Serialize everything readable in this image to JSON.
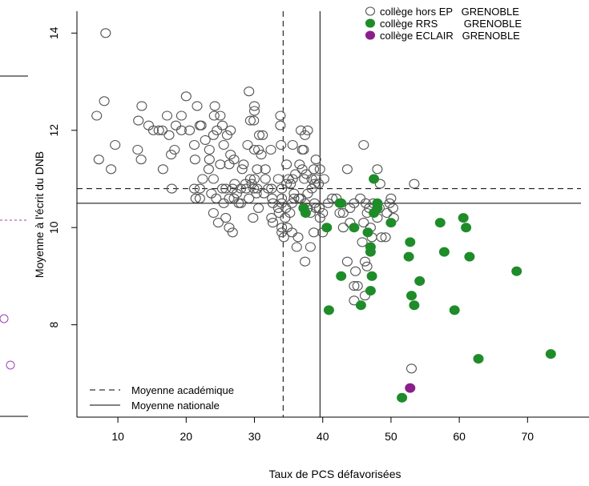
{
  "chart_data": {
    "type": "scatter",
    "xlabel": "Taux de PCS défavorisées",
    "ylabel": "Moyenne à l'écrit du DNB",
    "xlim": [
      4,
      79
    ],
    "ylim": [
      6.1,
      14.45
    ],
    "xticks": [
      "10",
      "20",
      "30",
      "40",
      "50",
      "60",
      "70"
    ],
    "yticks": [
      "8",
      "10",
      "12",
      "14"
    ],
    "grid": false,
    "legend_position": "top-right",
    "series": [
      {
        "name": "collège hors EP   GRENOBLE",
        "marker": "open-circle",
        "color": "#555555",
        "points": [
          [
            8.2,
            14.0
          ],
          [
            8.0,
            12.6
          ],
          [
            6.9,
            12.3
          ],
          [
            9.6,
            11.7
          ],
          [
            7.2,
            11.4
          ],
          [
            9.0,
            11.2
          ],
          [
            12.9,
            11.6
          ],
          [
            13.4,
            11.4
          ],
          [
            13.5,
            12.5
          ],
          [
            13.0,
            12.2
          ],
          [
            14.5,
            12.1
          ],
          [
            15.2,
            12.0
          ],
          [
            16.0,
            12.0
          ],
          [
            16.5,
            12.0
          ],
          [
            17.2,
            12.3
          ],
          [
            17.5,
            11.9
          ],
          [
            16.6,
            11.2
          ],
          [
            17.8,
            11.5
          ],
          [
            17.9,
            10.8
          ],
          [
            18.5,
            12.1
          ],
          [
            18.3,
            11.6
          ],
          [
            19.3,
            12.0
          ],
          [
            19.3,
            12.3
          ],
          [
            20.0,
            12.7
          ],
          [
            20.5,
            12.0
          ],
          [
            21.2,
            11.7
          ],
          [
            21.3,
            11.4
          ],
          [
            22.0,
            12.1
          ],
          [
            22.2,
            12.1
          ],
          [
            21.6,
            12.5
          ],
          [
            22.8,
            11.8
          ],
          [
            23.4,
            11.6
          ],
          [
            23.4,
            11.4
          ],
          [
            24.2,
            12.5
          ],
          [
            24.1,
            12.3
          ],
          [
            24.0,
            11.9
          ],
          [
            24.5,
            12.0
          ],
          [
            25.0,
            12.3
          ],
          [
            25.3,
            12.1
          ],
          [
            25.5,
            11.7
          ],
          [
            26.0,
            11.9
          ],
          [
            26.5,
            12.0
          ],
          [
            26.3,
            11.3
          ],
          [
            26.5,
            11.5
          ],
          [
            27.0,
            11.4
          ],
          [
            25.0,
            11.3
          ],
          [
            24.0,
            11.0
          ],
          [
            23.3,
            11.2
          ],
          [
            22.4,
            11.0
          ],
          [
            22.0,
            10.8
          ],
          [
            21.2,
            10.8
          ],
          [
            22.0,
            10.6
          ],
          [
            21.4,
            10.6
          ],
          [
            23.7,
            10.7
          ],
          [
            24.4,
            10.6
          ],
          [
            25.3,
            10.8
          ],
          [
            25.8,
            10.8
          ],
          [
            26.8,
            10.8
          ],
          [
            27.1,
            10.9
          ],
          [
            27.4,
            10.7
          ],
          [
            28.0,
            10.8
          ],
          [
            28.8,
            10.8
          ],
          [
            28.0,
            10.5
          ],
          [
            27.7,
            10.5
          ],
          [
            27.0,
            10.6
          ],
          [
            26.3,
            10.6
          ],
          [
            25.5,
            10.5
          ],
          [
            24.0,
            10.3
          ],
          [
            24.7,
            10.1
          ],
          [
            25.8,
            10.2
          ],
          [
            26.3,
            10.0
          ],
          [
            26.8,
            9.9
          ],
          [
            28.2,
            11.2
          ],
          [
            28.4,
            11.3
          ],
          [
            28.7,
            10.9
          ],
          [
            29.4,
            11.0
          ],
          [
            29.6,
            10.9
          ],
          [
            30.0,
            11.0
          ],
          [
            29.2,
            10.6
          ],
          [
            29.9,
            10.8
          ],
          [
            30.4,
            10.8
          ],
          [
            30.3,
            10.7
          ],
          [
            30.6,
            10.4
          ],
          [
            29.8,
            10.2
          ],
          [
            31.4,
            10.7
          ],
          [
            32.0,
            10.8
          ],
          [
            32.7,
            10.5
          ],
          [
            32.5,
            10.8
          ],
          [
            32.6,
            10.6
          ],
          [
            31.6,
            11.0
          ],
          [
            30.4,
            11.2
          ],
          [
            30.6,
            11.6
          ],
          [
            30.7,
            11.9
          ],
          [
            29.4,
            12.2
          ],
          [
            29.9,
            12.2
          ],
          [
            30.0,
            12.4
          ],
          [
            30.0,
            12.5
          ],
          [
            29.2,
            12.8
          ],
          [
            29.0,
            11.7
          ],
          [
            30.0,
            11.6
          ],
          [
            31.2,
            11.9
          ],
          [
            31.0,
            11.5
          ],
          [
            31.6,
            11.2
          ],
          [
            32.4,
            11.6
          ],
          [
            33.5,
            11.0
          ],
          [
            34.0,
            10.8
          ],
          [
            34.0,
            10.6
          ],
          [
            34.0,
            10.5
          ],
          [
            33.5,
            10.4
          ],
          [
            32.5,
            10.2
          ],
          [
            32.7,
            10.1
          ],
          [
            33.6,
            10.3
          ],
          [
            34.5,
            10.2
          ],
          [
            34.0,
            10.0
          ],
          [
            34.0,
            9.9
          ],
          [
            34.3,
            9.8
          ],
          [
            35.2,
            10.3
          ],
          [
            35.5,
            10.5
          ],
          [
            35.8,
            10.6
          ],
          [
            35.8,
            10.7
          ],
          [
            36.5,
            10.6
          ],
          [
            36.8,
            10.6
          ],
          [
            37.4,
            10.5
          ],
          [
            37.2,
            10.4
          ],
          [
            37.8,
            10.4
          ],
          [
            38.2,
            10.3
          ],
          [
            39.0,
            10.4
          ],
          [
            39.5,
            10.4
          ],
          [
            40.0,
            10.3
          ],
          [
            38.8,
            10.5
          ],
          [
            37.8,
            10.7
          ],
          [
            38.4,
            10.8
          ],
          [
            38.8,
            10.9
          ],
          [
            39.4,
            10.9
          ],
          [
            38.4,
            11.0
          ],
          [
            37.6,
            11.1
          ],
          [
            36.6,
            11.3
          ],
          [
            37.0,
            11.2
          ],
          [
            37.3,
            11.0
          ],
          [
            36.0,
            11.1
          ],
          [
            35.6,
            11.0
          ],
          [
            35.0,
            11.0
          ],
          [
            35.3,
            10.9
          ],
          [
            34.7,
            10.9
          ],
          [
            34.7,
            11.3
          ],
          [
            35.6,
            11.7
          ],
          [
            37.2,
            11.6
          ],
          [
            37.4,
            11.9
          ],
          [
            37.8,
            12.0
          ],
          [
            36.8,
            12.0
          ],
          [
            33.8,
            12.3
          ],
          [
            33.9,
            11.7
          ],
          [
            33.8,
            12.1
          ],
          [
            37.0,
            11.6
          ],
          [
            39.0,
            11.4
          ],
          [
            38.7,
            11.2
          ],
          [
            39.0,
            11.0
          ],
          [
            39.6,
            11.2
          ],
          [
            40.2,
            11.0
          ],
          [
            38.2,
            9.6
          ],
          [
            38.7,
            9.9
          ],
          [
            39.6,
            10.2
          ],
          [
            40.0,
            9.9
          ],
          [
            37.4,
            9.3
          ],
          [
            36.2,
            9.6
          ],
          [
            36.4,
            9.8
          ],
          [
            35.5,
            9.9
          ],
          [
            34.8,
            10.0
          ],
          [
            34.6,
            10.4
          ],
          [
            40.8,
            10.5
          ],
          [
            42.0,
            10.6
          ],
          [
            43.0,
            10.3
          ],
          [
            44.0,
            10.4
          ],
          [
            43.6,
            11.2
          ],
          [
            44.6,
            10.5
          ],
          [
            45.5,
            10.6
          ],
          [
            46.3,
            10.5
          ],
          [
            46.8,
            10.4
          ],
          [
            47.4,
            10.5
          ],
          [
            48.3,
            10.4
          ],
          [
            49.8,
            10.5
          ],
          [
            48.4,
            10.9
          ],
          [
            50.0,
            10.6
          ],
          [
            50.3,
            10.4
          ],
          [
            50.4,
            10.2
          ],
          [
            49.4,
            10.3
          ],
          [
            48.0,
            10.2
          ],
          [
            47.0,
            10.0
          ],
          [
            46.5,
            10.3
          ],
          [
            46.0,
            10.1
          ],
          [
            44.0,
            10.1
          ],
          [
            43.0,
            10.0
          ],
          [
            42.5,
            10.3
          ],
          [
            41.4,
            10.6
          ],
          [
            47.2,
            9.8
          ],
          [
            48.6,
            9.8
          ],
          [
            49.2,
            9.8
          ],
          [
            45.8,
            9.7
          ],
          [
            43.6,
            9.3
          ],
          [
            44.8,
            9.1
          ],
          [
            45.1,
            8.8
          ],
          [
            44.6,
            8.8
          ],
          [
            46.2,
            9.3
          ],
          [
            46.5,
            9.2
          ],
          [
            44.6,
            8.5
          ],
          [
            46.2,
            8.6
          ],
          [
            46.0,
            11.7
          ],
          [
            53.4,
            10.9
          ],
          [
            48.0,
            11.2
          ],
          [
            53.0,
            7.1
          ]
        ]
      },
      {
        "name": "collège RRS         GRENOBLE",
        "marker": "filled-circle",
        "color": "#1f8c2a",
        "points": [
          [
            47.5,
            11.0
          ],
          [
            48.0,
            10.5
          ],
          [
            48.0,
            10.4
          ],
          [
            47.5,
            10.3
          ],
          [
            37.2,
            10.4
          ],
          [
            37.5,
            10.3
          ],
          [
            42.5,
            10.5
          ],
          [
            42.7,
            10.5
          ],
          [
            46.6,
            9.9
          ],
          [
            40.6,
            10.0
          ],
          [
            44.6,
            10.0
          ],
          [
            47.0,
            9.6
          ],
          [
            47.0,
            9.5
          ],
          [
            50.0,
            10.1
          ],
          [
            52.8,
            9.7
          ],
          [
            52.6,
            9.4
          ],
          [
            57.2,
            10.1
          ],
          [
            60.6,
            10.2
          ],
          [
            61.0,
            10.0
          ],
          [
            57.8,
            9.5
          ],
          [
            61.5,
            9.4
          ],
          [
            42.7,
            9.0
          ],
          [
            47.2,
            9.0
          ],
          [
            47.0,
            8.7
          ],
          [
            54.2,
            8.9
          ],
          [
            53.0,
            8.6
          ],
          [
            45.6,
            8.4
          ],
          [
            53.4,
            8.4
          ],
          [
            59.3,
            8.3
          ],
          [
            40.9,
            8.3
          ],
          [
            68.4,
            9.1
          ],
          [
            62.8,
            7.3
          ],
          [
            73.4,
            7.4
          ],
          [
            51.6,
            6.5
          ]
        ]
      },
      {
        "name": "collège ECLAIR   GRENOBLE",
        "marker": "filled-circle",
        "color": "#8a1f8a",
        "points": [
          [
            52.8,
            6.7
          ]
        ]
      }
    ],
    "reference_lines": [
      {
        "name": "Moyenne académique",
        "style": "dashed",
        "x": 34.2,
        "y": 10.8
      },
      {
        "name": "Moyenne nationale",
        "style": "solid",
        "x": 39.6,
        "y": 10.5
      }
    ]
  }
}
